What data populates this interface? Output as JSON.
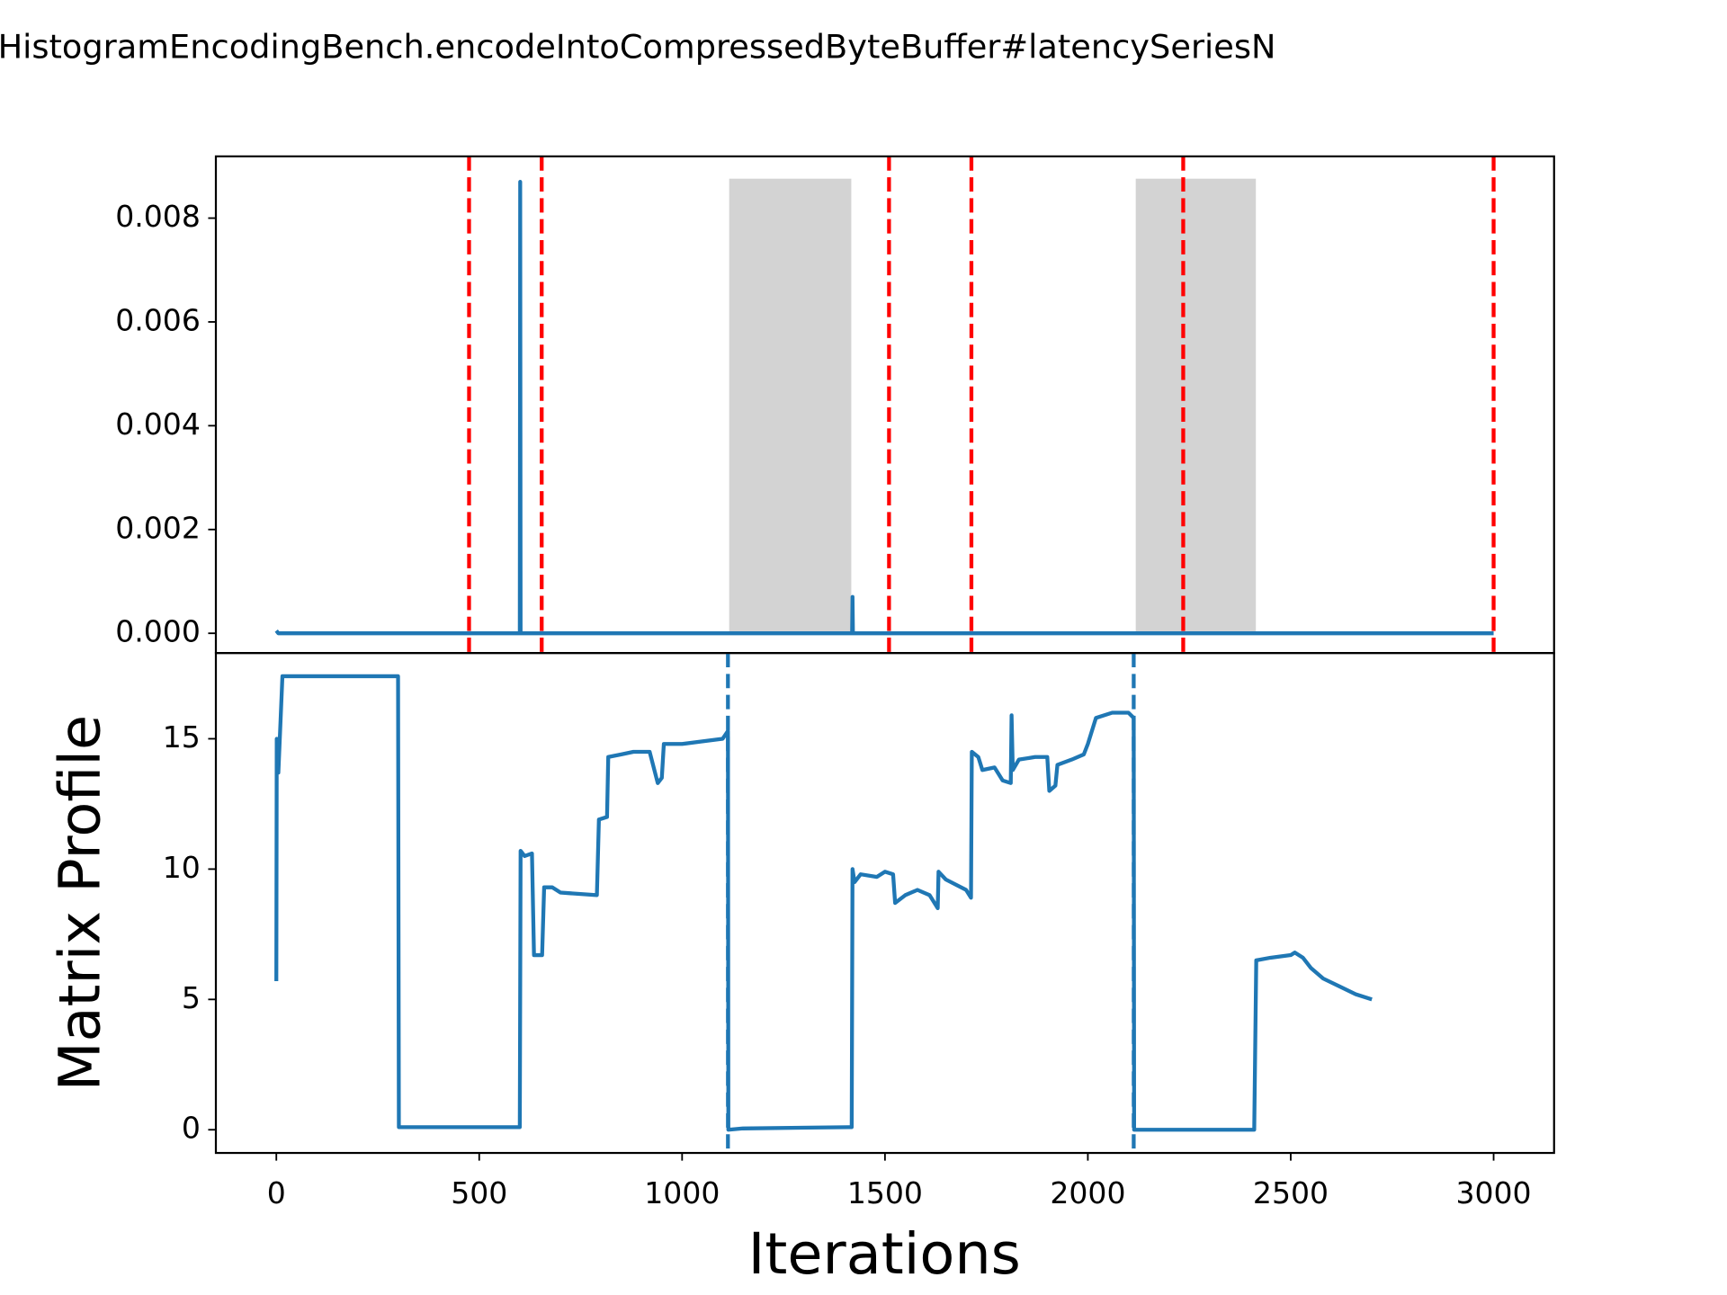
{
  "chart_data": [
    {
      "type": "line",
      "title": "HistogramEncodingBench.encodeIntoCompressedByteBuffer#latencySeriesN",
      "xlim": [
        -149,
        3149
      ],
      "ylim": [
        -0.00038,
        0.00919
      ],
      "yticks": [
        {
          "value": 0,
          "label": "0.000"
        },
        {
          "value": 0.002,
          "label": "0.002"
        },
        {
          "value": 0.004,
          "label": "0.004"
        },
        {
          "value": 0.006,
          "label": "0.006"
        },
        {
          "value": 0.008,
          "label": "0.008"
        }
      ],
      "x": [
        0,
        5,
        598,
        600,
        601,
        602,
        1418,
        1419,
        1420,
        1421,
        3000
      ],
      "series": [
        {
          "color": "#1f77b4",
          "values": [
            5e-05,
            0,
            0,
            0,
            0.0087,
            0,
            0,
            0,
            0.0007,
            0,
            0
          ]
        }
      ],
      "vlines": {
        "color": "#ff0000",
        "x": [
          475,
          654,
          1510,
          1713,
          2235,
          3000
        ]
      },
      "spans": [
        {
          "x": [
            1116,
            1417
          ],
          "y": [
            0,
            0.00876
          ]
        },
        {
          "x": [
            2118,
            2414
          ],
          "y": [
            0,
            0.00876
          ]
        }
      ],
      "span_color": "#d3d3d3"
    },
    {
      "type": "line",
      "xlabel": "Iterations",
      "ylabel": "Matrix Profile",
      "xlim": [
        -149,
        3149
      ],
      "ylim": [
        -0.89,
        18.29
      ],
      "xticks": [
        0,
        500,
        1000,
        1500,
        2000,
        2500,
        3000
      ],
      "yticks": [
        0,
        5,
        10,
        15
      ],
      "x": [
        0,
        1,
        5,
        15,
        300,
        302,
        600,
        602,
        612,
        630,
        635,
        655,
        660,
        680,
        700,
        790,
        795,
        815,
        818,
        850,
        880,
        920,
        940,
        950,
        955,
        1000,
        1050,
        1100,
        1113,
        1114,
        1150,
        1410,
        1418,
        1420,
        1425,
        1440,
        1480,
        1500,
        1520,
        1525,
        1550,
        1580,
        1610,
        1630,
        1632,
        1650,
        1700,
        1712,
        1714,
        1730,
        1740,
        1770,
        1790,
        1810,
        1812,
        1815,
        1830,
        1870,
        1900,
        1905,
        1920,
        1925,
        1960,
        1990,
        2000,
        2020,
        2060,
        2100,
        2113,
        2114,
        2410,
        2415,
        2450,
        2500,
        2510,
        2530,
        2550,
        2580,
        2620,
        2660,
        2700
      ],
      "series": [
        {
          "color": "#1f77b4",
          "values": [
            5.7,
            15.0,
            13.7,
            17.4,
            17.4,
            0.1,
            0.1,
            10.7,
            10.5,
            10.6,
            6.7,
            6.7,
            9.3,
            9.3,
            9.1,
            9.0,
            11.9,
            12.0,
            14.3,
            14.4,
            14.5,
            14.5,
            13.3,
            13.5,
            14.8,
            14.8,
            14.9,
            15.0,
            15.3,
            0,
            0.05,
            0.1,
            0.1,
            10.0,
            9.5,
            9.8,
            9.7,
            9.9,
            9.8,
            8.7,
            9.0,
            9.2,
            9.0,
            8.5,
            9.9,
            9.6,
            9.2,
            8.9,
            14.5,
            14.3,
            13.8,
            13.9,
            13.4,
            13.3,
            15.9,
            13.8,
            14.2,
            14.3,
            14.3,
            13.0,
            13.2,
            14.0,
            14.2,
            14.4,
            14.8,
            15.8,
            16.0,
            16.0,
            15.8,
            0,
            0,
            6.5,
            6.6,
            6.7,
            6.8,
            6.6,
            6.2,
            5.8,
            5.5,
            5.2,
            5.0
          ]
        }
      ],
      "vlines": {
        "color": "#1f77b4",
        "x": [
          1113,
          2113
        ]
      }
    }
  ]
}
